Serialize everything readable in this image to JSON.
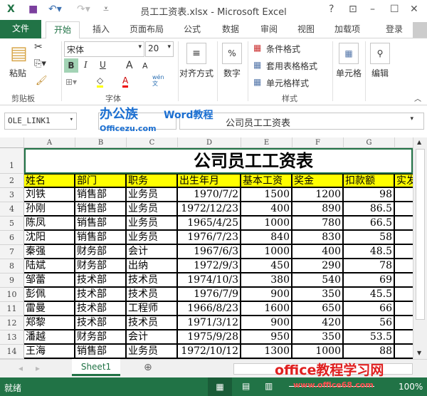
{
  "window": {
    "title": "员工工资表.xlsx - Microsoft Excel",
    "help": "?"
  },
  "tabs": [
    "文件",
    "开始",
    "插入",
    "页面布局",
    "公式",
    "数据",
    "审阅",
    "视图",
    "加载项"
  ],
  "login": "登录",
  "ribbon": {
    "clipboard": {
      "paste": "粘贴",
      "label": "剪贴板"
    },
    "font": {
      "name": "宋体",
      "size": "20",
      "bold": "B",
      "italic": "I",
      "underline": "U",
      "grow": "A",
      "shrink": "A",
      "phonetic": "wén\n文",
      "label": "字体"
    },
    "alignment": "对齐方式",
    "number": "数字",
    "number_icon": "%",
    "styles": {
      "conditional": "条件格式",
      "table": "套用表格格式",
      "cell": "单元格样式",
      "label": "样式"
    },
    "cells": "单元格",
    "editing": "编辑"
  },
  "formula_bar": {
    "name_box": "OLE_LINK1",
    "content": "公司员工工资表"
  },
  "watermarks": {
    "top1": "办公族",
    "top2": "Officezu.com",
    "top3": "Word教程",
    "bottom1": "office教程学习网",
    "bottom2": "www.office68.com"
  },
  "sheet": {
    "columns": [
      "A",
      "B",
      "C",
      "D",
      "E",
      "F",
      "G"
    ],
    "title": "公司员工工资表",
    "headers": [
      "姓名",
      "部门",
      "职务",
      "出生年月",
      "基本工资",
      "奖金",
      "扣款额",
      "实发"
    ],
    "rows": [
      [
        "刘铁",
        "销售部",
        "业务员",
        "1970/7/2",
        "1500",
        "1200",
        "98"
      ],
      [
        "孙刚",
        "销售部",
        "业务员",
        "1972/12/23",
        "400",
        "890",
        "86.5"
      ],
      [
        "陈凤",
        "销售部",
        "业务员",
        "1965/4/25",
        "1000",
        "780",
        "66.5"
      ],
      [
        "沈阳",
        "销售部",
        "业务员",
        "1976/7/23",
        "840",
        "830",
        "58"
      ],
      [
        "秦强",
        "财务部",
        "会计",
        "1967/6/3",
        "1000",
        "400",
        "48.5"
      ],
      [
        "陆斌",
        "财务部",
        "出纳",
        "1972/9/3",
        "450",
        "290",
        "78"
      ],
      [
        "邹蕾",
        "技术部",
        "技术员",
        "1974/10/3",
        "380",
        "540",
        "69"
      ],
      [
        "彭佩",
        "技术部",
        "技术员",
        "1976/7/9",
        "900",
        "350",
        "45.5"
      ],
      [
        "雷曼",
        "技术部",
        "工程师",
        "1966/8/23",
        "1600",
        "650",
        "66"
      ],
      [
        "郑黎",
        "技术部",
        "技术员",
        "1971/3/12",
        "900",
        "420",
        "56"
      ],
      [
        "潘越",
        "财务部",
        "会计",
        "1975/9/28",
        "950",
        "350",
        "53.5"
      ],
      [
        "王海",
        "销售部",
        "业务员",
        "1972/10/12",
        "1300",
        "1000",
        "88"
      ]
    ]
  },
  "sheet_tabs": [
    "Sheet1"
  ],
  "status": {
    "text": "就绪",
    "zoom": "100%"
  },
  "colors": {
    "accent": "#217346",
    "header_fill": "#ffff00"
  }
}
